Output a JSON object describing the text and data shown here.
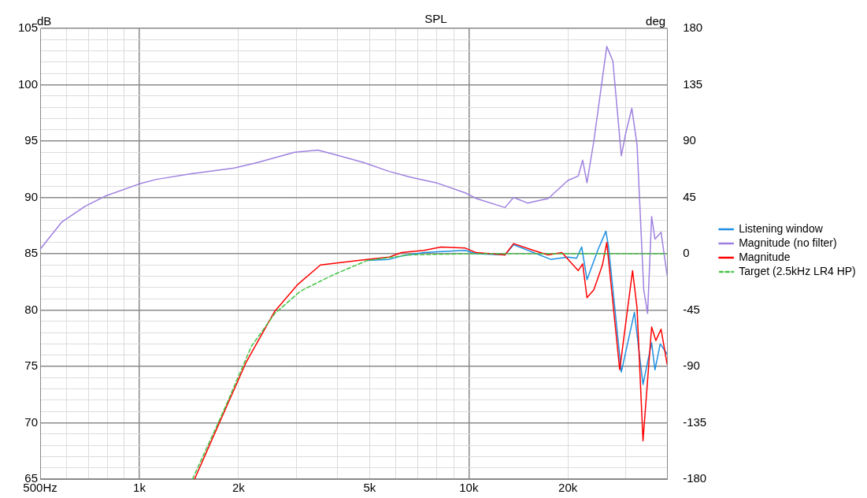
{
  "chart_data": {
    "type": "line",
    "title": "SPL",
    "ylabel": "dB",
    "y2label": "deg",
    "log": "x",
    "grid": true,
    "legend": "right",
    "marker": "none",
    "xlim": [
      500,
      40000
    ],
    "ylim": [
      65,
      105
    ],
    "y2lim": [
      -180,
      180
    ],
    "xticks": [
      {
        "value": 500,
        "label": "500Hz"
      },
      {
        "value": 600,
        "label": null
      },
      {
        "value": 700,
        "label": null
      },
      {
        "value": 800,
        "label": null
      },
      {
        "value": 900,
        "label": null
      },
      {
        "value": 1000,
        "label": "1k"
      },
      {
        "value": 2000,
        "label": "2k"
      },
      {
        "value": 3000,
        "label": null
      },
      {
        "value": 4000,
        "label": null
      },
      {
        "value": 5000,
        "label": "5k"
      },
      {
        "value": 6000,
        "label": null
      },
      {
        "value": 7000,
        "label": null
      },
      {
        "value": 8000,
        "label": null
      },
      {
        "value": 9000,
        "label": null
      },
      {
        "value": 10000,
        "label": "10k"
      },
      {
        "value": 20000,
        "label": "20k"
      },
      {
        "value": 30000,
        "label": null
      },
      {
        "value": 40000,
        "label": null
      }
    ],
    "yticks": [
      65,
      {
        "value": 66,
        "label": null
      },
      {
        "value": 67,
        "label": null
      },
      {
        "value": 68,
        "label": null
      },
      {
        "value": 69,
        "label": null
      },
      70,
      {
        "value": 71,
        "label": null
      },
      {
        "value": 72,
        "label": null
      },
      {
        "value": 73,
        "label": null
      },
      {
        "value": 74,
        "label": null
      },
      75,
      {
        "value": 76,
        "label": null
      },
      {
        "value": 77,
        "label": null
      },
      {
        "value": 78,
        "label": null
      },
      {
        "value": 79,
        "label": null
      },
      80,
      {
        "value": 81,
        "label": null
      },
      {
        "value": 82,
        "label": null
      },
      {
        "value": 83,
        "label": null
      },
      {
        "value": 84,
        "label": null
      },
      85,
      {
        "value": 86,
        "label": null
      },
      {
        "value": 87,
        "label": null
      },
      {
        "value": 88,
        "label": null
      },
      {
        "value": 89,
        "label": null
      },
      90,
      {
        "value": 91,
        "label": null
      },
      {
        "value": 92,
        "label": null
      },
      {
        "value": 93,
        "label": null
      },
      {
        "value": 94,
        "label": null
      },
      95,
      {
        "value": 96,
        "label": null
      },
      {
        "value": 97,
        "label": null
      },
      {
        "value": 98,
        "label": null
      },
      {
        "value": 99,
        "label": null
      },
      100,
      {
        "value": 101,
        "label": null
      },
      {
        "value": 102,
        "label": null
      },
      {
        "value": 103,
        "label": null
      },
      {
        "value": 104,
        "label": null
      },
      105
    ],
    "y2ticks": [
      -180,
      -135,
      -90,
      -45,
      0,
      45,
      90,
      135,
      180
    ],
    "series": [
      {
        "name": "Listening window",
        "color": "#1e8fe0",
        "line_style": "solid",
        "x": [
          4910,
          5740,
          6250,
          7310,
          8240,
          9760,
          10540,
          12880,
          13680,
          17730,
          20000,
          21240,
          22020,
          22850,
          24710,
          26080,
          26570,
          29050,
          31830,
          33800,
          35900,
          36750,
          38130,
          40000
        ],
        "values": [
          84.4,
          84.5,
          84.8,
          85.1,
          85.2,
          85.3,
          85.0,
          84.9,
          85.8,
          84.5,
          84.7,
          84.6,
          85.6,
          82.7,
          85.4,
          87.0,
          85.6,
          74.5,
          79.8,
          73.4,
          77.1,
          74.7,
          77.0,
          76.1
        ]
      },
      {
        "name": "Magnitude (no filter)",
        "color": "#9f80e0",
        "line_style": "solid",
        "x": [
          500,
          581,
          684,
          786,
          1000,
          1127,
          1436,
          1941,
          2283,
          2958,
          3482,
          3930,
          4795,
          5740,
          6637,
          7960,
          9760,
          10540,
          12880,
          13680,
          15070,
          17420,
          20000,
          21500,
          22170,
          22850,
          23970,
          26240,
          27380,
          29050,
          29960,
          31260,
          32420,
          33980,
          34900,
          35900,
          36750,
          38350,
          40000
        ],
        "values": [
          85.4,
          87.8,
          89.2,
          90.1,
          91.2,
          91.6,
          92.1,
          92.6,
          93.1,
          94.0,
          94.2,
          93.8,
          93.1,
          92.3,
          91.8,
          91.3,
          90.4,
          89.9,
          89.1,
          90.0,
          89.5,
          89.9,
          91.5,
          91.9,
          93.3,
          91.3,
          95.0,
          103.4,
          102.1,
          93.7,
          95.7,
          97.9,
          94.7,
          81.8,
          79.7,
          88.3,
          86.3,
          86.9,
          83.1
        ]
      },
      {
        "name": "Magnitude",
        "color": "#ff0000",
        "line_style": "solid",
        "x": [
          1471,
          1762,
          2112,
          2578,
          3033,
          3547,
          4910,
          5740,
          6250,
          7310,
          8240,
          9760,
          10540,
          12880,
          13680,
          15720,
          17410,
          19180,
          21500,
          22170,
          22850,
          23970,
          25450,
          26240,
          28720,
          31420,
          32420,
          33800,
          35900,
          36980,
          38350,
          40000
        ],
        "values": [
          65.0,
          70.2,
          75.4,
          79.9,
          82.3,
          84.0,
          84.5,
          84.7,
          85.1,
          85.3,
          85.6,
          85.5,
          85.1,
          84.9,
          85.9,
          85.3,
          84.9,
          85.1,
          83.5,
          84.1,
          81.1,
          81.8,
          84.0,
          86.0,
          74.7,
          83.5,
          80.2,
          68.4,
          78.5,
          77.3,
          78.3,
          75.2
        ]
      },
      {
        "name": "Target (2.5kHz LR4 HP)",
        "color": "#44c444",
        "line_style": "dashed",
        "x": [
          1450,
          1805,
          2190,
          2578,
          3090,
          3860,
          4910,
          6637,
          10000,
          20000,
          40000
        ],
        "values": [
          65.0,
          71.1,
          76.8,
          79.7,
          81.7,
          83.1,
          84.4,
          84.9,
          85.0,
          85.0,
          85.0
        ]
      }
    ]
  }
}
